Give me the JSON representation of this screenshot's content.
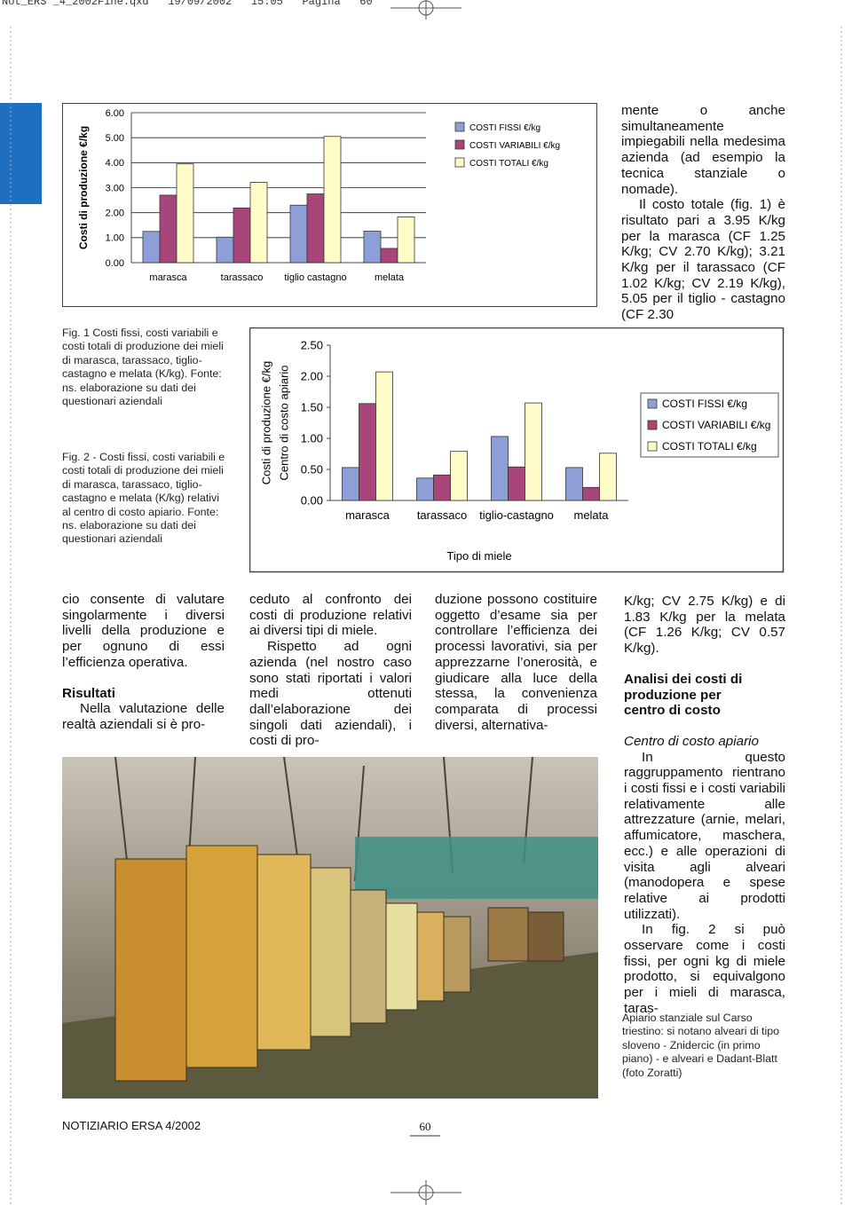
{
  "header": {
    "slug": "Not_ERS _4_2002Fine.qxd   19/09/2002   15:05   Pagina   60"
  },
  "chart_data": [
    {
      "type": "bar",
      "ylabel": "Costi di produzione €/kg",
      "categories": [
        "marasca",
        "tarassaco",
        "tiglio castagno",
        "melata"
      ],
      "series": [
        {
          "name": "COSTI FISSI €/kg",
          "color": "#8e9fd8",
          "values": [
            1.25,
            1.02,
            2.3,
            1.26
          ]
        },
        {
          "name": "COSTI VARIABILI €/kg",
          "color": "#a8457a",
          "values": [
            2.7,
            2.19,
            2.75,
            0.57
          ]
        },
        {
          "name": "COSTI TOTALI €/kg",
          "color": "#fffcc8",
          "values": [
            3.95,
            3.21,
            5.05,
            1.83
          ]
        }
      ],
      "ylim": [
        0,
        6
      ],
      "yticks": [
        {
          "value": 0,
          "label": "0.00"
        },
        {
          "value": 1,
          "label": "1.00"
        },
        {
          "value": 2,
          "label": "2.00"
        },
        {
          "value": 3,
          "label": "3.00"
        },
        {
          "value": 4,
          "label": "4.00"
        },
        {
          "value": 5,
          "label": "5.00"
        },
        {
          "value": 6,
          "label": "6.00"
        }
      ],
      "grid": true
    },
    {
      "type": "bar",
      "ylabel": [
        "Costi di produzione €/kg",
        "Centro di costo apiario"
      ],
      "xlabel": "Tipo di miele",
      "categories": [
        "marasca",
        "tarassaco",
        "tiglio-castagno",
        "melata"
      ],
      "series": [
        {
          "name": "COSTI FISSI €/kg",
          "color": "#8e9fd8",
          "values": [
            0.53,
            0.36,
            1.03,
            0.53
          ]
        },
        {
          "name": "COSTI VARIABILI €/kg",
          "color": "#a8457a",
          "values": [
            1.56,
            0.41,
            0.54,
            0.21
          ]
        },
        {
          "name": "COSTI TOTALI €/kg",
          "color": "#fffcc8",
          "values": [
            2.07,
            0.79,
            1.57,
            0.76
          ]
        }
      ],
      "ylim": [
        0,
        2.5
      ],
      "yticks": [
        {
          "value": 0,
          "label": "0.00"
        },
        {
          "value": 0.5,
          "label": "0.50"
        },
        {
          "value": 1,
          "label": "1.00"
        },
        {
          "value": 1.5,
          "label": "1.50"
        },
        {
          "value": 2,
          "label": "2.00"
        },
        {
          "value": 2.5,
          "label": "2.50"
        }
      ],
      "grid": false
    }
  ],
  "figure_captions": [
    "Fig. 1 Costi fissi, costi variabili e costi totali di produzione dei mieli di marasca, tarassaco, tiglio-castagno e melata (K/kg). Fonte: ns. elaborazione su dati dei questionari aziendali",
    "Fig. 2 - Costi fissi, costi variabili e costi totali di produzione dei mieli di marasca, tarassaco, tiglio-castagno e melata (K/kg) relativi al centro di costo apiario. Fonte: ns. elaborazione su dati dei questionari aziendali"
  ],
  "text_top": [
    "mente o anche simultaneamente impiegabili nella medesima azienda (ad esempio la tecnica stanziale o nomade).",
    "Il costo totale (fig. 1) è risultato pari a 3.95 K/kg per la marasca (CF 1.25 K/kg; CV 2.70 K/kg); 3.21 K/kg per il tarassaco (CF 1.02 K/kg; CV 2.19 K/kg), 5.05 per il tiglio - castagno (CF 2.30"
  ],
  "body": {
    "col1": [
      "cio consente di valutare singolarmente i diversi livelli della produzione e per ognuno di essi l’efficienza operativa.",
      "Risultati",
      "Nella valutazione delle realtà aziendali si è pro-"
    ],
    "col2": [
      "ceduto al confronto dei costi di produzione relativi ai diversi tipi di miele.",
      "Rispetto ad ogni azienda (nel nostro caso sono stati riportati i valori medi ottenuti dall’elaborazione dei singoli dati aziendali), i costi di pro-"
    ],
    "col3": [
      "duzione possono costituire oggetto d’esame sia per controllare l’efficienza dei processi lavorativi, sia per apprezzarne l’onerosità, e giudicare alla luce della stessa, la convenienza comparata di processi diversi, alternativa-"
    ],
    "col4": [
      "K/kg; CV 2.75 K/kg) e di 1.83 K/kg per la melata (CF 1.26 K/kg; CV 0.57 K/kg).",
      "Analisi dei costi di produzione per centro di costo",
      "Centro di costo apiario",
      "In questo raggruppamento rientrano i costi fissi e i costi variabili relativamente alle attrezzature (arnie, melari, affumicatore, maschera, ecc.) e alle operazioni di visita agli alveari (manodopera e spese relative ai prodotti utilizzati).",
      "In fig. 2 si può osservare come i costi fissi, per ogni kg di miele prodotto, si equivalgono per i mieli di marasca, taras-"
    ]
  },
  "photo_caption": "Apiario stanziale sul Carso triestino: si notano alveari di tipo sloveno - Znidercic (in primo piano) - e alveari e Dadant-Blatt (foto Zoratti)",
  "footer": {
    "journal": "NOTIZIARIO ERSA 4/2002",
    "page": "60"
  }
}
